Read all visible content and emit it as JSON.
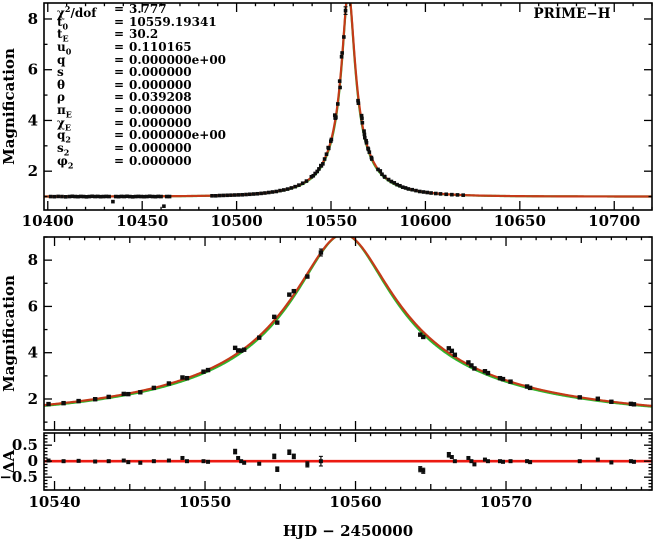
{
  "figure": {
    "observatory_label": "PRIME−H",
    "xlabel": "HJD − 2450000",
    "colors": {
      "model_primary": "#c43a18",
      "model_secondary": "#2db72d",
      "zero_line": "#ec1a12",
      "points": "#0d0d0d",
      "axis": "#000000",
      "background": "#ffffff"
    },
    "fit_params": [
      {
        "sym": "χ",
        "sup": "2",
        "suffix": "/dof",
        "value": "3.777"
      },
      {
        "sym": "t",
        "sub": "0",
        "value": "10559.19341"
      },
      {
        "sym": "t",
        "sub": "E",
        "value": "30.2"
      },
      {
        "sym": "u",
        "sub": "0",
        "value": "0.110165"
      },
      {
        "sym": "q",
        "value": "0.000000e+00"
      },
      {
        "sym": "s",
        "value": "0.000000"
      },
      {
        "sym": "θ",
        "value": "0.000000"
      },
      {
        "sym": "ρ",
        "value": "0.039208"
      },
      {
        "sym": "π",
        "sub": "E",
        "value": "0.000000"
      },
      {
        "sym": "χ",
        "sub": "E",
        "value": "0.000000"
      },
      {
        "sym": "q",
        "sub": "2",
        "value": "0.000000e+00"
      },
      {
        "sym": "s",
        "sub": "2",
        "value": "0.000000"
      },
      {
        "sym": "φ",
        "sub": "2",
        "value": "0.000000"
      }
    ]
  },
  "chart_data": {
    "type": "scatter",
    "xlabel": "HJD − 2450000",
    "model_primary": {
      "t0": 10559.19341,
      "tE": 30.2,
      "u0": 0.110165
    },
    "model_secondary": {
      "t0": 10559.19341,
      "tE": 29.4,
      "u0": 0.110165
    },
    "datasets": {
      "wide": [
        [
          10401.5,
          1.0,
          0.025
        ],
        [
          10403.5,
          0.995,
          0.025
        ],
        [
          10405.5,
          1.005,
          0.025
        ],
        [
          10407.5,
          1.0,
          0.025
        ],
        [
          10409.5,
          0.99,
          0.025
        ],
        [
          10411.5,
          1.0,
          0.025
        ],
        [
          10413.0,
          1.01,
          0.025
        ],
        [
          10414.5,
          1.0,
          0.025
        ],
        [
          10416.0,
          0.995,
          0.025
        ],
        [
          10417.5,
          1.005,
          0.025
        ],
        [
          10419.0,
          1.0,
          0.025
        ],
        [
          10420.5,
          0.99,
          0.025
        ],
        [
          10422.0,
          1.0,
          0.025
        ],
        [
          10423.5,
          1.01,
          0.025
        ],
        [
          10425.0,
          1.0,
          0.025
        ],
        [
          10426.5,
          1.005,
          0.025
        ],
        [
          10428.0,
          0.995,
          0.025
        ],
        [
          10429.5,
          1.0,
          0.025
        ],
        [
          10431.0,
          1.005,
          0.025
        ],
        [
          10432.5,
          1.0,
          0.025
        ],
        [
          10434.5,
          0.8,
          0.055
        ],
        [
          10436.0,
          1.0,
          0.025
        ],
        [
          10437.5,
          0.995,
          0.025
        ],
        [
          10439.0,
          1.005,
          0.025
        ],
        [
          10440.5,
          1.0,
          0.025
        ],
        [
          10442.0,
          1.01,
          0.025
        ],
        [
          10443.5,
          1.0,
          0.025
        ],
        [
          10445.0,
          0.99,
          0.025
        ],
        [
          10446.5,
          1.0,
          0.025
        ],
        [
          10448.0,
          1.005,
          0.025
        ],
        [
          10449.5,
          1.0,
          0.025
        ],
        [
          10451.0,
          0.995,
          0.025
        ],
        [
          10452.5,
          1.0,
          0.025
        ],
        [
          10454.0,
          1.01,
          0.025
        ],
        [
          10455.5,
          1.0,
          0.025
        ],
        [
          10457.0,
          0.995,
          0.025
        ],
        [
          10458.5,
          1.005,
          0.025
        ],
        [
          10460.0,
          1.0,
          0.025
        ],
        [
          10461.5,
          0.62,
          0.065
        ],
        [
          10463.0,
          1.0,
          0.025
        ],
        [
          10464.5,
          1.0,
          0.025
        ],
        [
          10487,
          1.03,
          0.025
        ],
        [
          10489,
          1.03,
          0.025
        ],
        [
          10491,
          1.04,
          0.025
        ],
        [
          10493,
          1.045,
          0.025
        ],
        [
          10495,
          1.05,
          0.025
        ],
        [
          10497,
          1.055,
          0.025
        ],
        [
          10499,
          1.06,
          0.025
        ],
        [
          10501,
          1.065,
          0.025
        ],
        [
          10503,
          1.07,
          0.025
        ],
        [
          10505,
          1.08,
          0.025
        ],
        [
          10507,
          1.09,
          0.025
        ],
        [
          10509,
          1.1,
          0.025
        ],
        [
          10511,
          1.11,
          0.025
        ],
        [
          10513,
          1.125,
          0.025
        ],
        [
          10515,
          1.14,
          0.025
        ],
        [
          10517,
          1.16,
          0.025
        ],
        [
          10519,
          1.18,
          0.025
        ],
        [
          10521,
          1.2,
          0.025
        ],
        [
          10523,
          1.235,
          0.025
        ],
        [
          10525,
          1.26,
          0.025
        ],
        [
          10527,
          1.295,
          0.025
        ],
        [
          10529,
          1.34,
          0.025
        ],
        [
          10531,
          1.39,
          0.025
        ],
        [
          10533,
          1.45,
          0.025
        ],
        [
          10535,
          1.525,
          0.025
        ],
        [
          10537,
          1.61,
          0.025
        ],
        [
          10580.5,
          1.67,
          0.03
        ],
        [
          10582.0,
          1.595,
          0.03
        ],
        [
          10583.5,
          1.54,
          0.03
        ],
        [
          10585.0,
          1.47,
          0.03
        ],
        [
          10586.5,
          1.425,
          0.03
        ],
        [
          10588.0,
          1.37,
          0.03
        ],
        [
          10589.5,
          1.34,
          0.03
        ],
        [
          10591.0,
          1.3,
          0.03
        ],
        [
          10593.0,
          1.27,
          0.03
        ],
        [
          10595.0,
          1.235,
          0.03
        ],
        [
          10597.0,
          1.2,
          0.03
        ],
        [
          10599.0,
          1.18,
          0.03
        ],
        [
          10601.0,
          1.16,
          0.03
        ],
        [
          10603.0,
          1.14,
          0.03
        ],
        [
          10605.5,
          1.12,
          0.03
        ],
        [
          10608.0,
          1.105,
          0.03
        ],
        [
          10611.0,
          1.09,
          0.03
        ],
        [
          10614.0,
          1.075,
          0.03
        ],
        [
          10617.0,
          1.065,
          0.03
        ],
        [
          10620.0,
          1.055,
          0.03
        ]
      ],
      "peak": [
        [
          10539.6,
          1.78,
          0.04,
          0.02
        ],
        [
          10540.6,
          1.82,
          0.04,
          0.0
        ],
        [
          10541.6,
          1.91,
          0.04,
          0.01
        ],
        [
          10542.7,
          1.99,
          0.04,
          -0.01
        ],
        [
          10543.6,
          2.09,
          0.04,
          0.0
        ],
        [
          10544.6,
          2.22,
          0.05,
          0.02
        ],
        [
          10544.9,
          2.21,
          0.04,
          -0.03
        ],
        [
          10545.7,
          2.29,
          0.04,
          -0.05
        ],
        [
          10546.6,
          2.48,
          0.04,
          0.0
        ],
        [
          10547.6,
          2.67,
          0.04,
          0.02
        ],
        [
          10548.5,
          2.93,
          0.06,
          0.1
        ],
        [
          10548.8,
          2.9,
          0.04,
          0.0
        ],
        [
          10549.9,
          3.18,
          0.04,
          0.0
        ],
        [
          10550.2,
          3.25,
          0.04,
          -0.02
        ],
        [
          10552.0,
          4.21,
          0.07,
          0.3
        ],
        [
          10552.2,
          4.1,
          0.05,
          0.1
        ],
        [
          10552.4,
          4.09,
          0.05,
          0.0
        ],
        [
          10552.6,
          4.13,
          0.05,
          -0.05
        ],
        [
          10553.6,
          4.65,
          0.05,
          -0.08
        ],
        [
          10554.6,
          5.55,
          0.07,
          0.15
        ],
        [
          10554.8,
          5.3,
          0.07,
          -0.25
        ],
        [
          10555.6,
          6.51,
          0.07,
          0.28
        ],
        [
          10555.9,
          6.66,
          0.07,
          0.15
        ],
        [
          10556.8,
          7.29,
          0.08,
          -0.1
        ],
        [
          10557.7,
          8.33,
          0.15,
          0.0
        ],
        [
          10564.3,
          4.78,
          0.08,
          -0.25
        ],
        [
          10564.5,
          4.68,
          0.08,
          -0.3
        ],
        [
          10566.2,
          4.19,
          0.07,
          0.2
        ],
        [
          10566.4,
          4.08,
          0.06,
          0.13
        ],
        [
          10566.6,
          3.91,
          0.05,
          0.0
        ],
        [
          10567.5,
          3.58,
          0.05,
          0.1
        ],
        [
          10567.7,
          3.45,
          0.05,
          0.0
        ],
        [
          10567.9,
          3.32,
          0.05,
          -0.1
        ],
        [
          10568.6,
          3.2,
          0.05,
          0.05
        ],
        [
          10568.8,
          3.12,
          0.04,
          0.0
        ],
        [
          10569.6,
          2.9,
          0.04,
          0.0
        ],
        [
          10569.8,
          2.86,
          0.04,
          -0.02
        ],
        [
          10570.3,
          2.75,
          0.04,
          0.0
        ],
        [
          10571.4,
          2.54,
          0.04,
          0.0
        ],
        [
          10571.6,
          2.48,
          0.04,
          -0.03
        ],
        [
          10574.9,
          2.07,
          0.06,
          0.0
        ],
        [
          10576.1,
          2.01,
          0.04,
          0.05
        ],
        [
          10577.0,
          1.88,
          0.04,
          -0.04
        ],
        [
          10578.3,
          1.79,
          0.04,
          0.0
        ],
        [
          10578.5,
          1.77,
          0.04,
          -0.02
        ]
      ]
    },
    "panels": [
      {
        "id": "full",
        "ylabel": "Magnification",
        "xlim": [
          10398,
          10720
        ],
        "ylim": [
          0.47,
          8.63
        ],
        "xticks": {
          "labeled": [
            10400,
            10450,
            10500,
            10550,
            10600,
            10650,
            10700
          ],
          "minor_step": 10,
          "major_step": 50
        },
        "yticks": {
          "labeled": [
            2,
            4,
            6,
            8
          ],
          "label_strings": [
            "2",
            "4",
            "6",
            "8"
          ],
          "minor_step": 1
        },
        "show_xlabels": true,
        "curves": true,
        "data": [
          "wide",
          "peak"
        ],
        "annotation": "PRIME−H"
      },
      {
        "id": "detail",
        "ylabel": "Magnification",
        "xlim": [
          10539.3,
          10579.7
        ],
        "ylim": [
          0.66,
          9.0
        ],
        "xticks": {
          "labeled": [
            10540,
            10550,
            10560,
            10570
          ],
          "minor_step": 1,
          "mid_step": 5,
          "major_step": 10
        },
        "yticks": {
          "labeled": [
            2,
            4,
            6,
            8
          ],
          "label_strings": [
            "2",
            "4",
            "6",
            "8"
          ],
          "minor_step": 1
        },
        "show_xlabels": false,
        "curves": true,
        "data": [
          "peak"
        ]
      },
      {
        "id": "resid",
        "ylabel": "ΔA",
        "xlim": [
          10539.3,
          10579.7
        ],
        "ylim": [
          -0.9,
          0.88
        ],
        "xticks": {
          "labeled": [
            10540,
            10550,
            10560,
            10570
          ],
          "minor_step": 1,
          "mid_step": 5,
          "major_step": 10
        },
        "yticks": {
          "labeled": [
            0.5,
            0,
            -0.5
          ],
          "label_strings": [
            "0.5",
            "0",
            "−0.5"
          ],
          "minor_step": 0.1
        },
        "show_xlabels": true,
        "curves": false,
        "zero_line": true,
        "data": [
          "peak"
        ],
        "use_residuals": true
      }
    ]
  }
}
